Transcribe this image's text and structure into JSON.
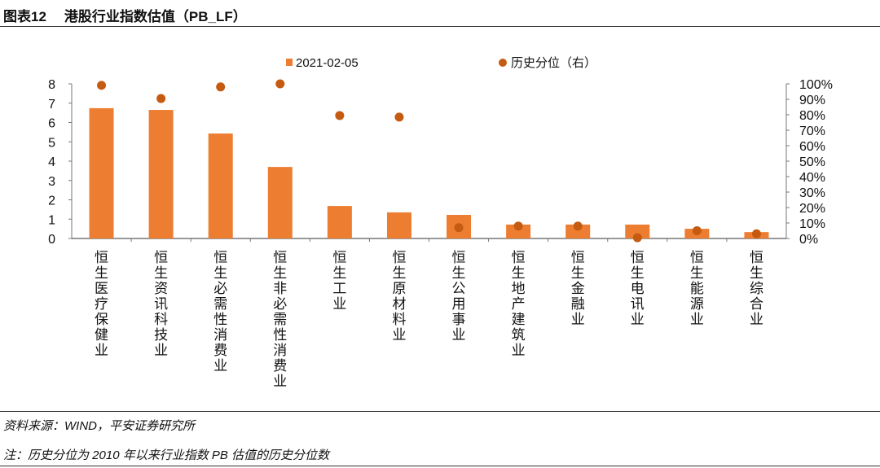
{
  "figure": {
    "number": "图表12",
    "title": "港股行业指数估值（PB_LF）"
  },
  "source": "资料来源：WIND，平安证券研究所",
  "note": "注：历史分位为 2010 年以来行业指数 PB 估值的历史分位数",
  "chart_data": {
    "type": "bar",
    "title": "港股行业指数估值（PB_LF）",
    "categories": [
      "恒生医疗保健业",
      "恒生资讯科技业",
      "恒生必需性消费业",
      "恒生非必需性消费业",
      "恒生工业",
      "恒生原材料业",
      "恒生公用事业",
      "恒生地产建筑业",
      "恒生金融业",
      "恒生电讯业",
      "恒生能源业",
      "恒生综合业"
    ],
    "series": [
      {
        "name": "2021-02-05",
        "type": "bar",
        "axis": "left",
        "color": "#ED7D31",
        "values": [
          6.74,
          6.65,
          5.43,
          3.7,
          1.68,
          1.35,
          1.22,
          0.72,
          0.72,
          0.72,
          0.5,
          0.33
        ]
      },
      {
        "name": "历史分位（右）",
        "type": "scatter",
        "axis": "right",
        "color": "#C55A11",
        "values": [
          99,
          90.5,
          98,
          100,
          79.5,
          78.5,
          7,
          8,
          8,
          0.5,
          5,
          3
        ]
      }
    ],
    "ylim": [
      0,
      8
    ],
    "yticks": [
      "0",
      "1",
      "2",
      "3",
      "4",
      "5",
      "6",
      "7",
      "8"
    ],
    "y2lim": [
      0,
      100
    ],
    "y2ticks": [
      "0%",
      "10%",
      "20%",
      "30%",
      "40%",
      "50%",
      "60%",
      "70%",
      "80%",
      "90%",
      "100%"
    ],
    "legend": "top-center",
    "grid": false
  }
}
